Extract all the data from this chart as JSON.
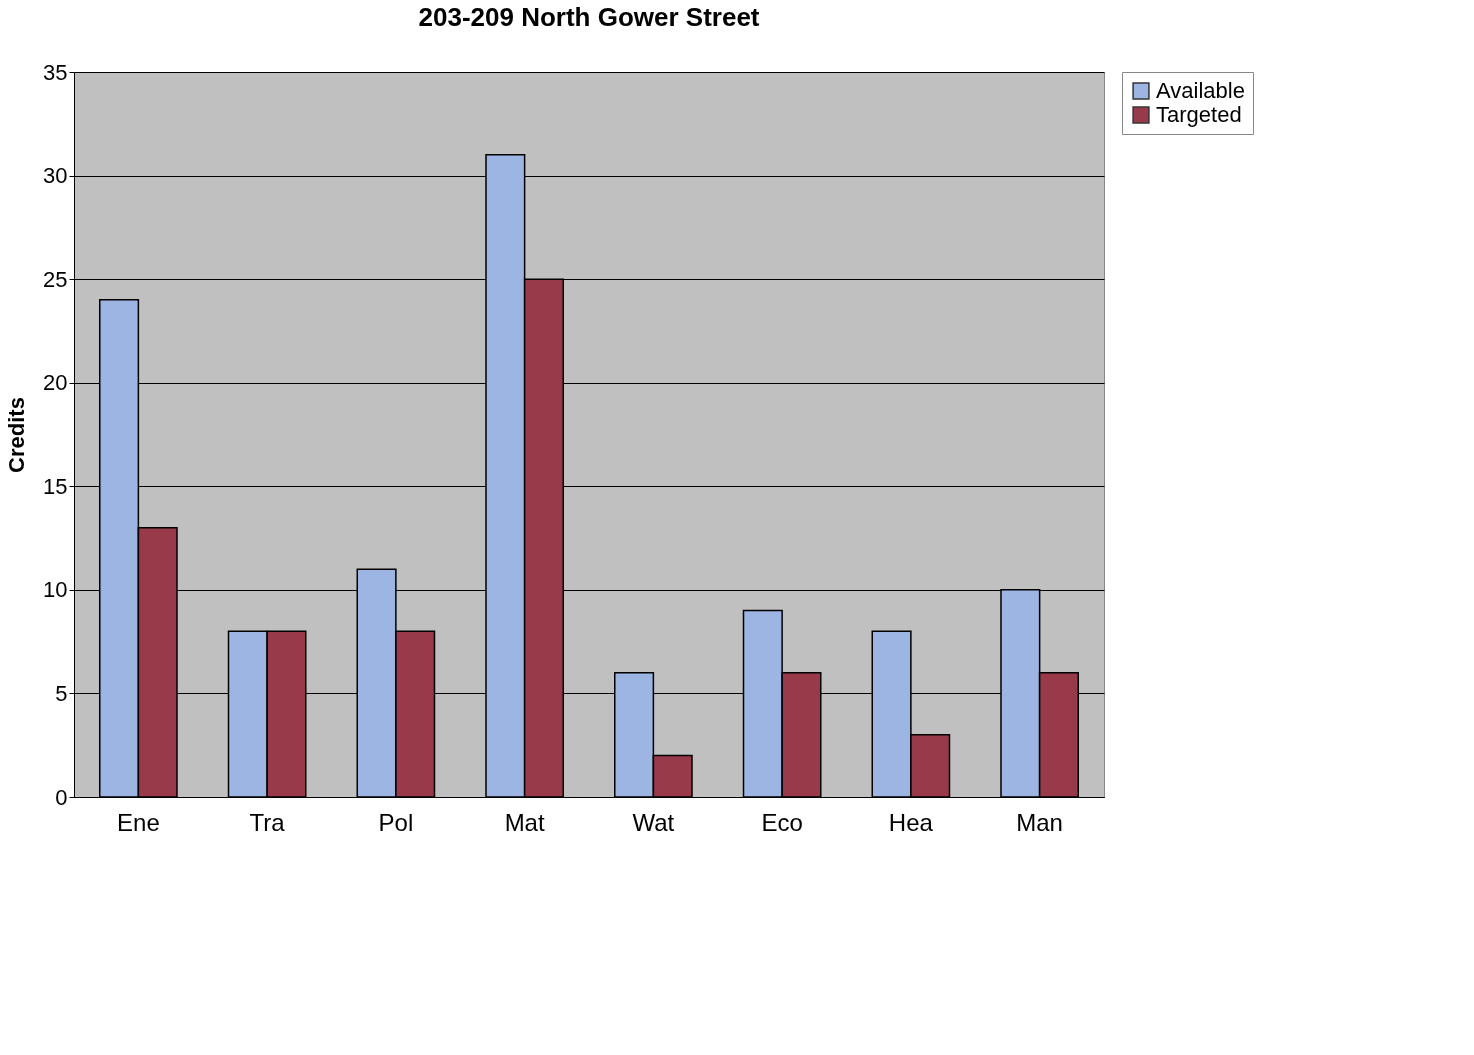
{
  "chart_data": {
    "type": "bar",
    "title": "203-209 North Gower Street",
    "ylabel": "Credits",
    "categories": [
      "Ene",
      "Tra",
      "Pol",
      "Mat",
      "Wat",
      "Eco",
      "Hea",
      "Man"
    ],
    "series": [
      {
        "name": "Available",
        "color": "#9db5e3",
        "values": [
          24,
          8,
          11,
          31,
          6,
          9,
          8,
          10
        ]
      },
      {
        "name": "Targeted",
        "color": "#983a4a",
        "values": [
          13,
          8,
          8,
          25,
          2,
          6,
          3,
          6
        ]
      }
    ],
    "ylim": [
      0,
      35
    ],
    "yticks": [
      0,
      5,
      10,
      15,
      20,
      25,
      30,
      35
    ],
    "grid": "y",
    "legend": "right"
  }
}
